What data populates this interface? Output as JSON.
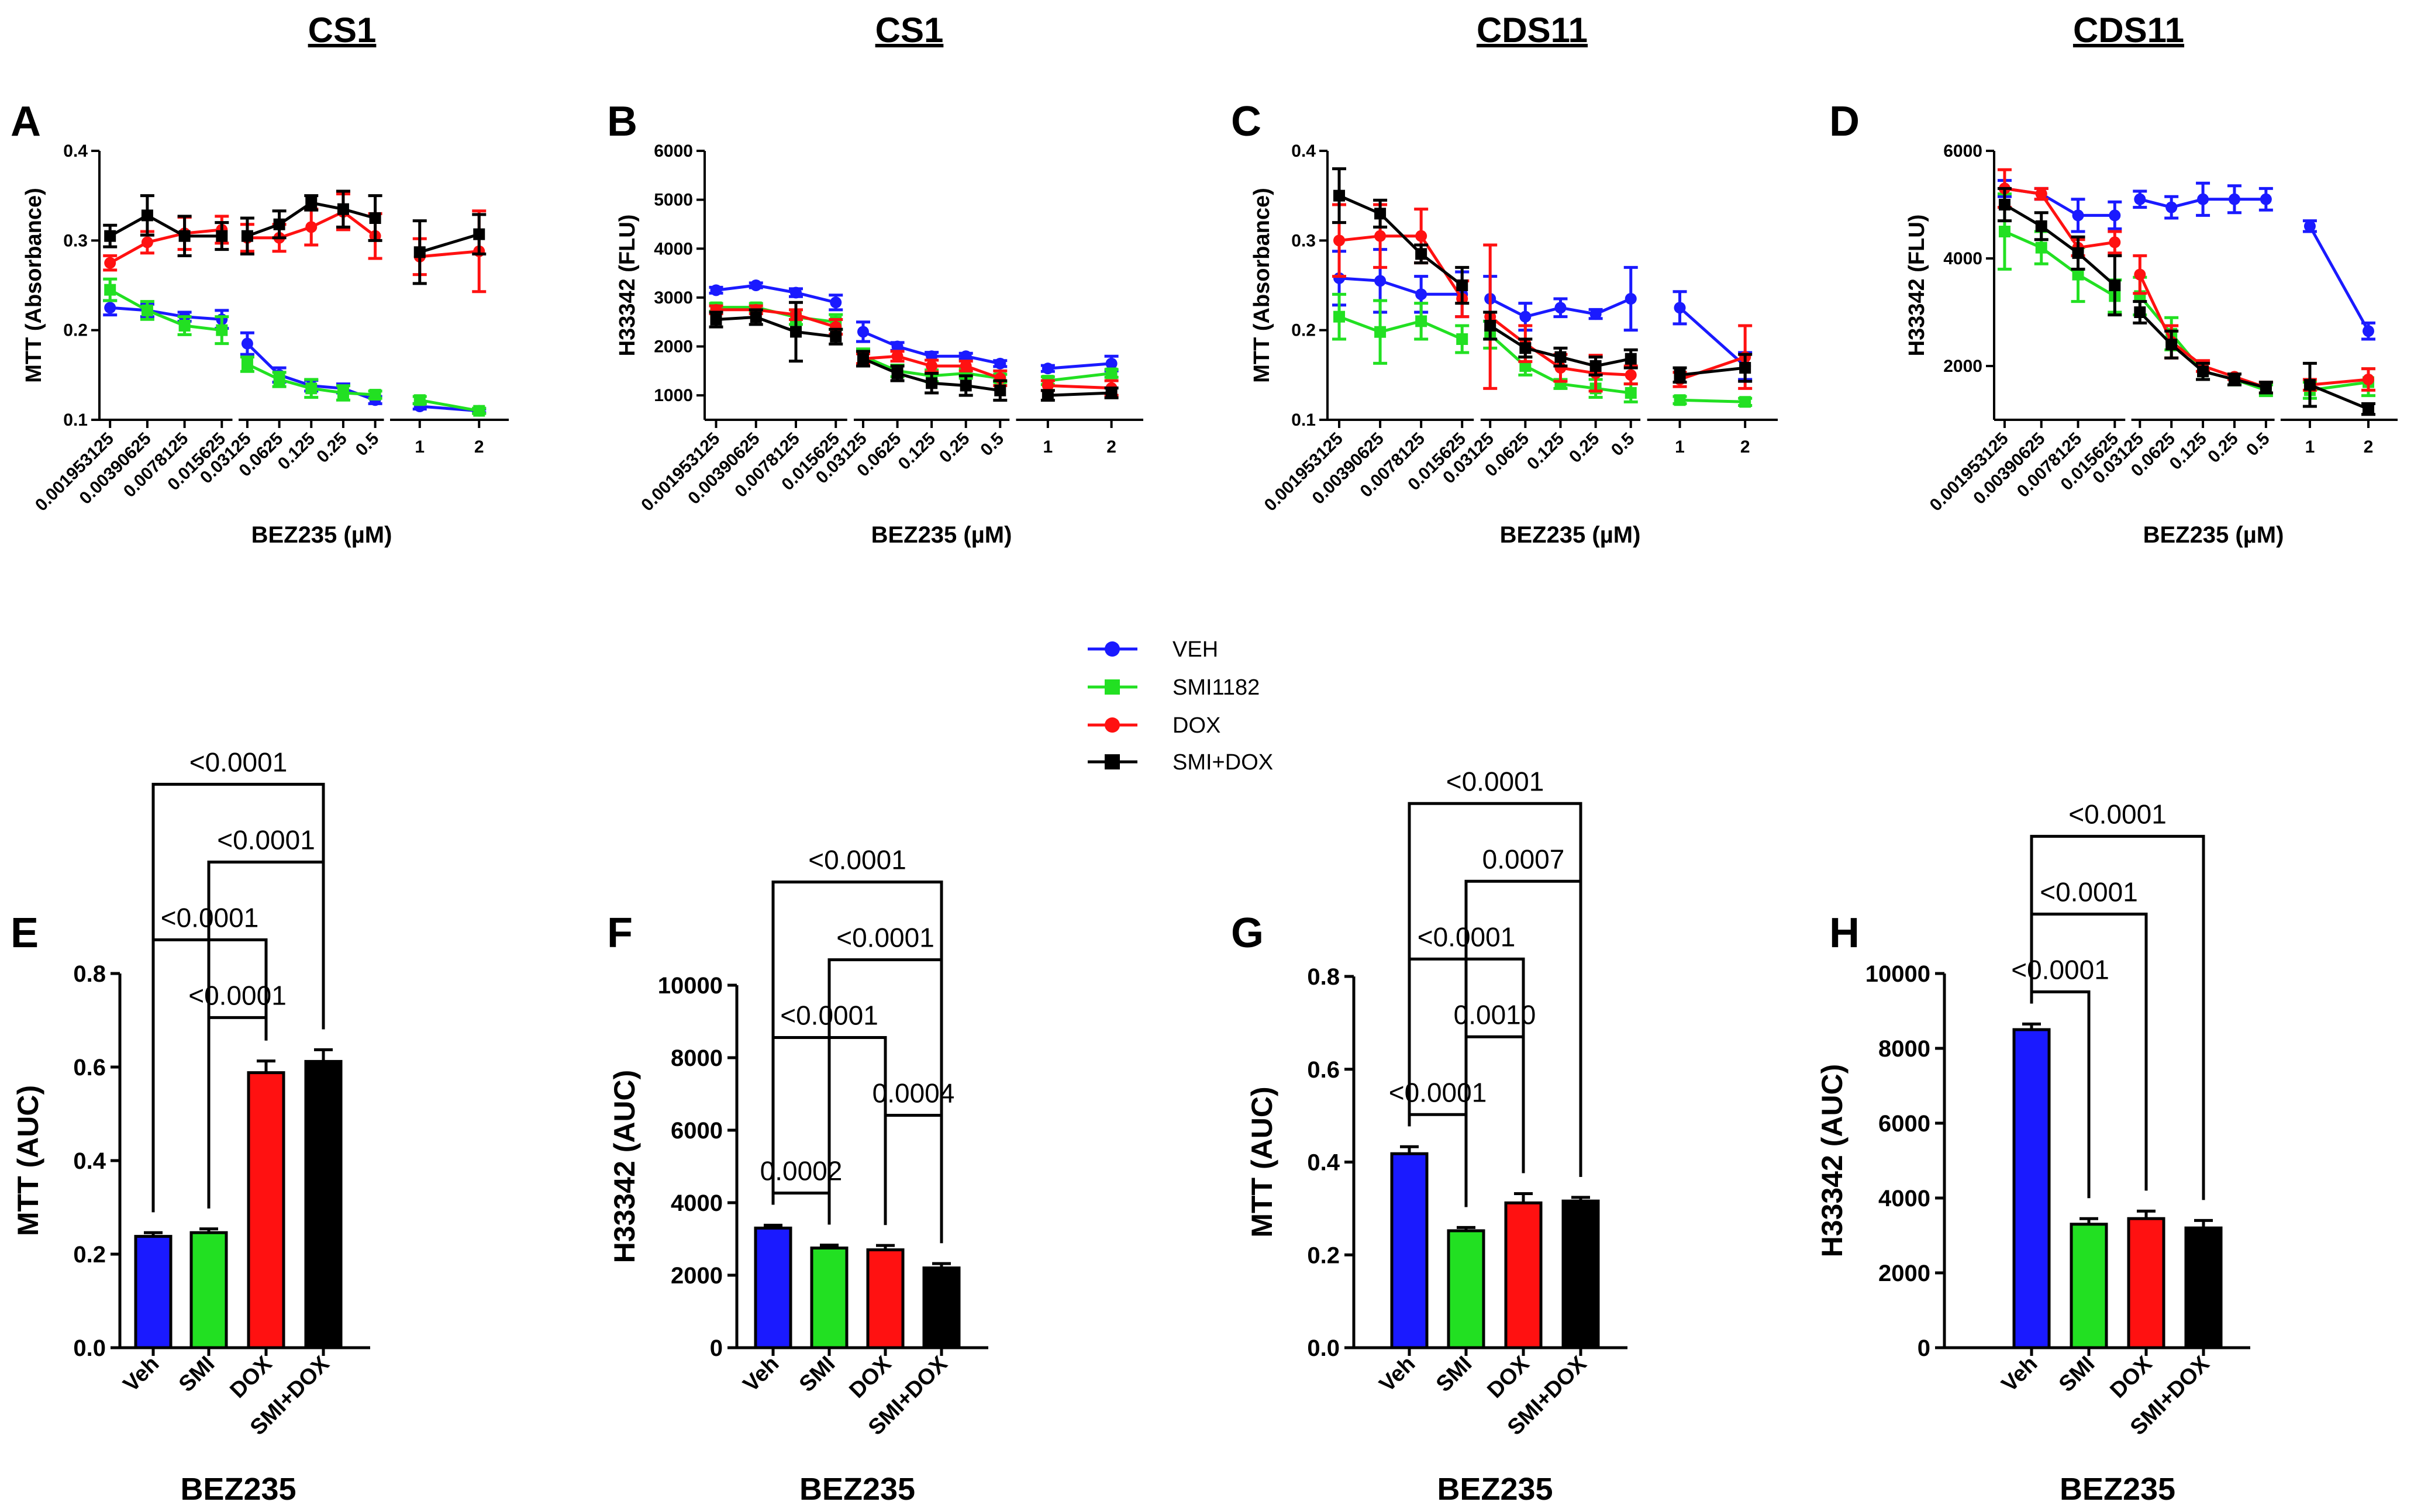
{
  "column_titles": [
    "CS1",
    "CS1",
    "CDS11",
    "CDS11"
  ],
  "legend": [
    {
      "label": "VEH",
      "color": "#1a1aff",
      "marker": "circle"
    },
    {
      "label": "SMI1182",
      "color": "#22e022",
      "marker": "square"
    },
    {
      "label": "DOX",
      "color": "#ff1111",
      "marker": "circle"
    },
    {
      "label": "SMI+DOX",
      "color": "#000000",
      "marker": "square"
    }
  ],
  "colors": {
    "veh": "#1a1aff",
    "smi": "#22e022",
    "dox": "#ff1111",
    "smidox": "#000000"
  },
  "chart_data": [
    {
      "panel": "A",
      "type": "line",
      "title": "CS1",
      "xlabel": "BEZ235 (µM)",
      "ylabel": "MTT (Absorbance)",
      "ylim": [
        0.1,
        0.4
      ],
      "yticks": [
        "0.1",
        "0.2",
        "0.3",
        "0.4"
      ],
      "x": [
        "0.001953125",
        "0.00390625",
        "0.0078125",
        "0.015625",
        "0.03125",
        "0.0625",
        "0.125",
        "0.25",
        "0.5",
        "1",
        "2"
      ],
      "series": [
        {
          "name": "VEH",
          "values": [
            0.225,
            0.222,
            0.215,
            0.212,
            0.185,
            0.15,
            0.138,
            0.135,
            0.122,
            0.115,
            0.11
          ],
          "errors": [
            0.008,
            0.007,
            0.005,
            0.01,
            0.012,
            0.008,
            0.006,
            0.005,
            0.004,
            0.003,
            0.002
          ]
        },
        {
          "name": "SMI1182",
          "values": [
            0.245,
            0.222,
            0.205,
            0.2,
            0.162,
            0.145,
            0.135,
            0.13,
            0.128,
            0.122,
            0.11
          ],
          "errors": [
            0.012,
            0.01,
            0.01,
            0.015,
            0.008,
            0.008,
            0.01,
            0.008,
            0.004,
            0.004,
            0.003
          ]
        },
        {
          "name": "DOX",
          "values": [
            0.275,
            0.298,
            0.308,
            0.312,
            0.303,
            0.303,
            0.315,
            0.332,
            0.305,
            0.282,
            0.288
          ],
          "errors": [
            0.008,
            0.012,
            0.018,
            0.015,
            0.015,
            0.015,
            0.02,
            0.02,
            0.025,
            0.02,
            0.045
          ]
        },
        {
          "name": "SMI+DOX",
          "values": [
            0.305,
            0.328,
            0.305,
            0.305,
            0.305,
            0.318,
            0.342,
            0.335,
            0.325,
            0.287,
            0.307
          ],
          "errors": [
            0.012,
            0.022,
            0.022,
            0.015,
            0.02,
            0.015,
            0.008,
            0.02,
            0.025,
            0.035,
            0.022
          ]
        }
      ]
    },
    {
      "panel": "B",
      "type": "line",
      "title": "CS1",
      "xlabel": "BEZ235 (µM)",
      "ylabel": "H33342 (FLU)",
      "ylim": [
        500,
        6000
      ],
      "yticks": [
        "1000",
        "2000",
        "3000",
        "4000",
        "5000",
        "6000"
      ],
      "x": [
        "0.001953125",
        "0.00390625",
        "0.0078125",
        "0.015625",
        "0.03125",
        "0.0625",
        "0.125",
        "0.25",
        "0.5",
        "1",
        "2"
      ],
      "series": [
        {
          "name": "VEH",
          "values": [
            3150,
            3250,
            3100,
            2900,
            2300,
            2000,
            1800,
            1800,
            1650,
            1550,
            1650
          ],
          "errors": [
            60,
            50,
            80,
            150,
            200,
            80,
            80,
            60,
            60,
            60,
            150
          ]
        },
        {
          "name": "SMI1182",
          "values": [
            2800,
            2800,
            2600,
            2500,
            1800,
            1500,
            1400,
            1450,
            1350,
            1300,
            1450
          ],
          "errors": [
            80,
            80,
            150,
            150,
            150,
            120,
            120,
            100,
            80,
            80,
            80
          ]
        },
        {
          "name": "DOX",
          "values": [
            2750,
            2750,
            2650,
            2400,
            1750,
            1800,
            1600,
            1600,
            1350,
            1200,
            1150
          ],
          "errors": [
            80,
            80,
            100,
            150,
            100,
            100,
            120,
            100,
            150,
            100,
            150
          ]
        },
        {
          "name": "SMI+DOX",
          "values": [
            2550,
            2600,
            2300,
            2200,
            1750,
            1450,
            1250,
            1200,
            1100,
            1000,
            1050
          ],
          "errors": [
            150,
            150,
            600,
            150,
            150,
            150,
            200,
            200,
            200,
            100,
            100
          ]
        }
      ]
    },
    {
      "panel": "C",
      "type": "line",
      "title": "CDS11",
      "xlabel": "BEZ235 (µM)",
      "ylabel": "MTT (Absorbance)",
      "ylim": [
        0.1,
        0.4
      ],
      "yticks": [
        "0.1",
        "0.2",
        "0.3",
        "0.4"
      ],
      "x": [
        "0.001953125",
        "0.00390625",
        "0.0078125",
        "0.015625",
        "0.03125",
        "0.0625",
        "0.125",
        "0.25",
        "0.5",
        "1",
        "2"
      ],
      "series": [
        {
          "name": "VEH",
          "values": [
            0.258,
            0.255,
            0.24,
            0.24,
            0.235,
            0.215,
            0.225,
            0.218,
            0.235,
            0.225,
            0.16
          ],
          "errors": [
            0.03,
            0.035,
            0.02,
            0.025,
            0.025,
            0.015,
            0.01,
            0.005,
            0.035,
            0.018,
            0.015
          ]
        },
        {
          "name": "SMI1182",
          "values": [
            0.215,
            0.198,
            0.21,
            0.19,
            0.195,
            0.16,
            0.14,
            0.135,
            0.13,
            0.122,
            0.12
          ],
          "errors": [
            0.025,
            0.035,
            0.02,
            0.015,
            0.015,
            0.01,
            0.005,
            0.01,
            0.01,
            0.004,
            0.004
          ]
        },
        {
          "name": "DOX",
          "values": [
            0.3,
            0.305,
            0.305,
            0.235,
            0.215,
            0.185,
            0.158,
            0.152,
            0.15,
            0.145,
            0.17
          ],
          "errors": [
            0.04,
            0.035,
            0.03,
            0.02,
            0.08,
            0.02,
            0.015,
            0.02,
            0.01,
            0.008,
            0.035
          ]
        },
        {
          "name": "SMI+DOX",
          "values": [
            0.35,
            0.33,
            0.285,
            0.25,
            0.205,
            0.18,
            0.17,
            0.16,
            0.168,
            0.15,
            0.158
          ],
          "errors": [
            0.03,
            0.015,
            0.01,
            0.02,
            0.015,
            0.01,
            0.01,
            0.01,
            0.01,
            0.008,
            0.015
          ]
        }
      ]
    },
    {
      "panel": "D",
      "type": "line",
      "title": "CDS11",
      "xlabel": "BEZ235 (µM)",
      "ylabel": "H33342 (FLU)",
      "ylim": [
        1000,
        6000
      ],
      "yticks": [
        "2000",
        "4000",
        "6000"
      ],
      "x": [
        "0.001953125",
        "0.00390625",
        "0.0078125",
        "0.015625",
        "0.03125",
        "0.0625",
        "0.125",
        "0.25",
        "0.5",
        "1",
        "2"
      ],
      "series": [
        {
          "name": "VEH",
          "values": [
            5300,
            5200,
            4800,
            4800,
            5100,
            4950,
            5100,
            5100,
            5100,
            4600,
            2650
          ],
          "errors": [
            150,
            100,
            300,
            250,
            150,
            200,
            300,
            250,
            200,
            100,
            150
          ]
        },
        {
          "name": "SMI1182",
          "values": [
            4500,
            4200,
            3700,
            3300,
            3300,
            2600,
            1900,
            1750,
            1550,
            1550,
            1700
          ],
          "errors": [
            700,
            300,
            500,
            300,
            350,
            300,
            150,
            100,
            100,
            150,
            250
          ]
        },
        {
          "name": "DOX",
          "values": [
            5300,
            5200,
            4200,
            4300,
            3700,
            2450,
            2000,
            1800,
            1600,
            1650,
            1750
          ],
          "errors": [
            350,
            100,
            150,
            200,
            350,
            300,
            100,
            50,
            100,
            100,
            200
          ]
        },
        {
          "name": "SMI+DOX",
          "values": [
            5000,
            4600,
            4100,
            3500,
            3000,
            2400,
            1900,
            1750,
            1600,
            1650,
            1200
          ],
          "errors": [
            300,
            250,
            300,
            550,
            200,
            250,
            150,
            100,
            100,
            400,
            100
          ]
        }
      ]
    },
    {
      "panel": "E",
      "type": "bar",
      "xlabel": "BEZ235",
      "ylabel": "MTT (AUC)",
      "ylim": [
        0,
        0.8
      ],
      "yticks": [
        "0.0",
        "0.2",
        "0.4",
        "0.6",
        "0.8"
      ],
      "categories": [
        "Veh",
        "SMI",
        "DOX",
        "SMI+DOX"
      ],
      "values": [
        0.238,
        0.246,
        0.588,
        0.612
      ],
      "errors": [
        0.008,
        0.008,
        0.025,
        0.025
      ],
      "comparisons": [
        {
          "from": 0,
          "to": 3,
          "label": "<0.0001"
        },
        {
          "from": 1,
          "to": 3,
          "label": "<0.0001"
        },
        {
          "from": 0,
          "to": 2,
          "label": "<0.0001"
        },
        {
          "from": 1,
          "to": 2,
          "label": "<0.0001"
        }
      ]
    },
    {
      "panel": "F",
      "type": "bar",
      "xlabel": "BEZ235",
      "ylabel": "H33342 (AUC)",
      "ylim": [
        0,
        10000
      ],
      "yticks": [
        "0",
        "2000",
        "4000",
        "6000",
        "8000",
        "10000"
      ],
      "categories": [
        "Veh",
        "SMI",
        "DOX",
        "SMI+DOX"
      ],
      "values": [
        3300,
        2750,
        2700,
        2200
      ],
      "errors": [
        80,
        80,
        120,
        120
      ],
      "comparisons": [
        {
          "from": 0,
          "to": 3,
          "label": "<0.0001"
        },
        {
          "from": 1,
          "to": 3,
          "label": "<0.0001"
        },
        {
          "from": 0,
          "to": 2,
          "label": "<0.0001"
        },
        {
          "from": 2,
          "to": 3,
          "label": "0.0004"
        },
        {
          "from": 0,
          "to": 1,
          "label": "0.0002"
        }
      ]
    },
    {
      "panel": "G",
      "type": "bar",
      "xlabel": "BEZ235",
      "ylabel": "MTT (AUC)",
      "ylim": [
        0,
        0.8
      ],
      "yticks": [
        "0.0",
        "0.2",
        "0.4",
        "0.6",
        "0.8"
      ],
      "categories": [
        "Veh",
        "SMI",
        "DOX",
        "SMI+DOX"
      ],
      "values": [
        0.418,
        0.252,
        0.312,
        0.316
      ],
      "errors": [
        0.015,
        0.007,
        0.02,
        0.008
      ],
      "comparisons": [
        {
          "from": 0,
          "to": 3,
          "label": "<0.0001"
        },
        {
          "from": 1,
          "to": 3,
          "label": "0.0007"
        },
        {
          "from": 0,
          "to": 2,
          "label": "<0.0001"
        },
        {
          "from": 1,
          "to": 2,
          "label": "0.0010"
        },
        {
          "from": 0,
          "to": 1,
          "label": "<0.0001"
        }
      ]
    },
    {
      "panel": "H",
      "type": "bar",
      "xlabel": "BEZ235",
      "ylabel": "H33342 (AUC)",
      "ylim": [
        0,
        10000
      ],
      "yticks": [
        "0",
        "2000",
        "4000",
        "6000",
        "8000",
        "10000"
      ],
      "categories": [
        "Veh",
        "SMI",
        "DOX",
        "SMI+DOX"
      ],
      "values": [
        8500,
        3300,
        3450,
        3200
      ],
      "errors": [
        150,
        150,
        200,
        200
      ],
      "comparisons": [
        {
          "from": 0,
          "to": 3,
          "label": "<0.0001"
        },
        {
          "from": 0,
          "to": 2,
          "label": "<0.0001"
        },
        {
          "from": 0,
          "to": 1,
          "label": "<0.0001"
        }
      ]
    }
  ]
}
